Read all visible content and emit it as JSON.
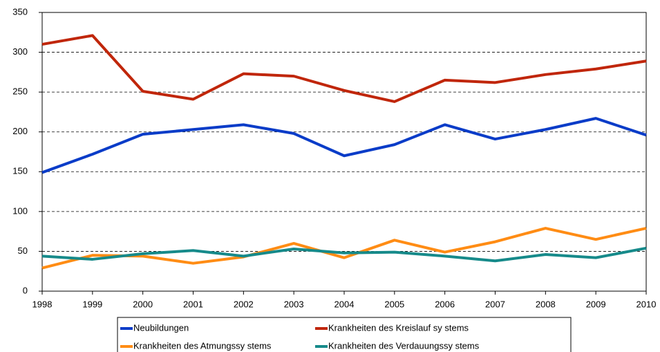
{
  "chart_data": {
    "type": "line",
    "x": [
      1998,
      1999,
      2000,
      2001,
      2002,
      2003,
      2004,
      2005,
      2006,
      2007,
      2008,
      2009,
      2010
    ],
    "series": [
      {
        "name": "Neubildungen",
        "color": "#0a3cc8",
        "values": [
          149,
          172,
          197,
          203,
          209,
          198,
          170,
          184,
          209,
          191,
          203,
          217,
          196
        ]
      },
      {
        "name": "Krankheiten des Kreislauf sy stems",
        "color": "#c0260a",
        "values": [
          310,
          321,
          251,
          241,
          273,
          270,
          252,
          238,
          265,
          262,
          272,
          279,
          289
        ]
      },
      {
        "name": "Krankheiten des Atmungssy stems",
        "color": "#ff8c14",
        "values": [
          29,
          45,
          44,
          35,
          43,
          60,
          42,
          64,
          49,
          62,
          79,
          65,
          79
        ]
      },
      {
        "name": "Krankheiten des Verdauungssy stems",
        "color": "#168a8a",
        "values": [
          44,
          40,
          47,
          51,
          44,
          53,
          48,
          49,
          44,
          38,
          46,
          42,
          54
        ]
      }
    ],
    "xlim": [
      1998,
      2010
    ],
    "xticks": [
      1998,
      1999,
      2000,
      2001,
      2002,
      2003,
      2004,
      2005,
      2006,
      2007,
      2008,
      2009,
      2010
    ],
    "ylim": [
      0,
      350
    ],
    "yticks": [
      0,
      50,
      100,
      150,
      200,
      250,
      300,
      350
    ],
    "grid": true,
    "legend": "bottom"
  }
}
